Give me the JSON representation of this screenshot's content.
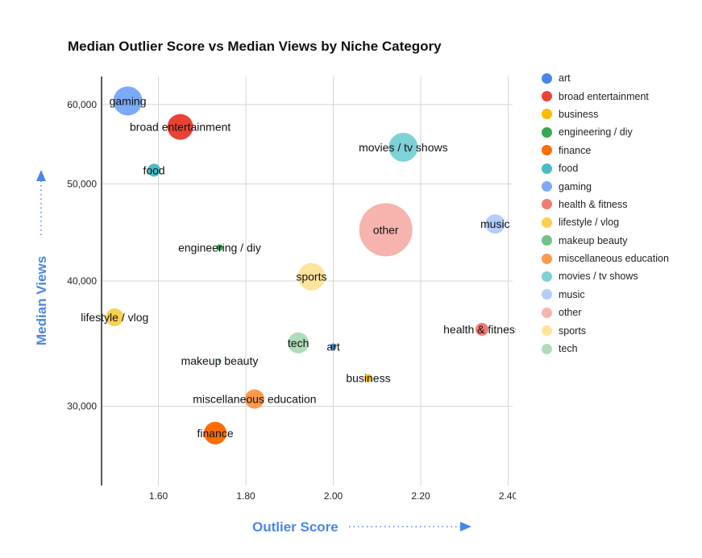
{
  "chart_data": {
    "type": "scatter",
    "bubble": true,
    "title": "Median Outlier Score vs Median Views by Niche Category",
    "xlabel": "Outlier Score",
    "ylabel": "Median Views",
    "xlim": [
      1.47,
      2.41
    ],
    "ylim": [
      25000,
      64000
    ],
    "y_scale": "log",
    "x_ticks": [
      1.6,
      1.8,
      2.0,
      2.2,
      2.4
    ],
    "x_tick_labels": [
      "1.60",
      "1.80",
      "2.00",
      "2.20",
      "2.40"
    ],
    "y_ticks": [
      30000,
      40000,
      50000,
      60000
    ],
    "y_tick_labels": [
      "30,000",
      "40,000",
      "50,000",
      "60,000"
    ],
    "grid": true,
    "legend_position": "right",
    "series": [
      {
        "name": "art",
        "color": "#4a86e8",
        "x": 2.0,
        "y": 34400,
        "size": 4
      },
      {
        "name": "broad entertainment",
        "color": "#ea4335",
        "x": 1.65,
        "y": 57000,
        "size": 16
      },
      {
        "name": "business",
        "color": "#fbbc04",
        "x": 2.08,
        "y": 32000,
        "size": 5
      },
      {
        "name": "engineering / diy",
        "color": "#34a853",
        "x": 1.74,
        "y": 43200,
        "size": 4
      },
      {
        "name": "finance",
        "color": "#ff6d01",
        "x": 1.73,
        "y": 28200,
        "size": 14
      },
      {
        "name": "food",
        "color": "#46bdc6",
        "x": 1.59,
        "y": 51600,
        "size": 8
      },
      {
        "name": "gaming",
        "color": "#7baaf7",
        "x": 1.53,
        "y": 60500,
        "size": 18
      },
      {
        "name": "health & fitness",
        "color": "#f07b72",
        "x": 2.34,
        "y": 35800,
        "size": 8
      },
      {
        "name": "lifestyle / vlog",
        "color": "#fcd04f",
        "x": 1.5,
        "y": 36800,
        "size": 11
      },
      {
        "name": "makeup beauty",
        "color": "#71c287",
        "x": 1.74,
        "y": 33300,
        "size": 2
      },
      {
        "name": "miscellaneous education",
        "color": "#ff994d",
        "x": 1.82,
        "y": 30500,
        "size": 12
      },
      {
        "name": "movies / tv shows",
        "color": "#7ed1d7",
        "x": 2.16,
        "y": 54400,
        "size": 18
      },
      {
        "name": "music",
        "color": "#b3cefb",
        "x": 2.37,
        "y": 45600,
        "size": 12
      },
      {
        "name": "other",
        "color": "#f7b4ae",
        "x": 2.12,
        "y": 45000,
        "size": 33
      },
      {
        "name": "sports",
        "color": "#fde49b",
        "x": 1.95,
        "y": 40400,
        "size": 17
      },
      {
        "name": "tech",
        "color": "#afdcb9",
        "x": 1.92,
        "y": 34700,
        "size": 13
      }
    ]
  }
}
